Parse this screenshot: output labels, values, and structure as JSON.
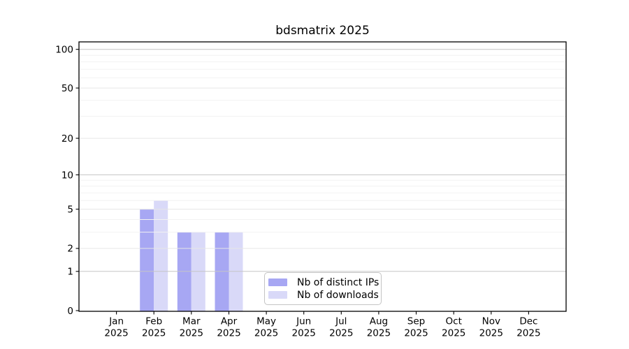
{
  "chart_data": {
    "type": "bar",
    "title": "bdsmatrix 2025",
    "categories": [
      "Jan",
      "Feb",
      "Mar",
      "Apr",
      "May",
      "Jun",
      "Jul",
      "Aug",
      "Sep",
      "Oct",
      "Nov",
      "Dec"
    ],
    "category_year": "2025",
    "series": [
      {
        "name": "Nb of distinct IPs",
        "color": "#a7a7f3",
        "values": [
          0,
          5,
          3,
          3,
          0,
          0,
          0,
          0,
          0,
          0,
          0,
          0
        ]
      },
      {
        "name": "Nb of downloads",
        "color": "#d9d9f8",
        "values": [
          0,
          6,
          3,
          3,
          0,
          0,
          0,
          0,
          0,
          0,
          0,
          0
        ]
      }
    ],
    "y_axis": {
      "scale": "log1p",
      "ticks": [
        100,
        50,
        20,
        10,
        5,
        2,
        1,
        0
      ],
      "major_gridlines": [
        100,
        10,
        1
      ],
      "mid_gridlines": [
        50,
        20,
        5,
        2
      ],
      "minor_gridlines": [
        3,
        4,
        6,
        7,
        8,
        9,
        30,
        40,
        60,
        70,
        80,
        90
      ],
      "ylim": [
        0,
        114
      ]
    },
    "x_axis": {
      "tick_label_lines": 2
    },
    "legend": {
      "position": "inside-bottom-center"
    },
    "grid": "on"
  }
}
